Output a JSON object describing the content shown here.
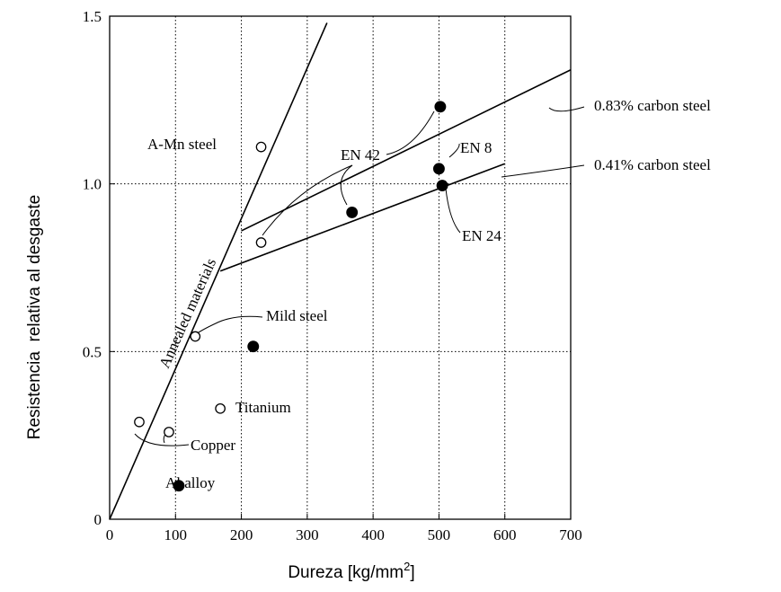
{
  "chart_data": {
    "type": "scatter",
    "title": "",
    "xlabel": "Dureza [kg/mm",
    "xlabel_sup": "2",
    "xlabel_end": "]",
    "ylabel": "Resistencia  relativa al desgaste",
    "xlim": [
      0,
      700
    ],
    "ylim": [
      0,
      1.5
    ],
    "x_ticks": [
      0,
      100,
      200,
      300,
      400,
      500,
      600,
      700
    ],
    "x_tick_labels": [
      "0",
      "100",
      "200",
      "300",
      "400",
      "500",
      "600",
      "700"
    ],
    "y_ticks": [
      0,
      0.5,
      1.0,
      1.5
    ],
    "y_tick_labels": [
      "0",
      "0.5",
      "1.0",
      "1.5"
    ],
    "grid": "dotted",
    "series": [
      {
        "marker": "open-circle",
        "points": [
          {
            "x": 45,
            "y": 0.29
          },
          {
            "x": 90,
            "y": 0.26
          },
          {
            "x": 130,
            "y": 0.545
          },
          {
            "x": 168,
            "y": 0.33
          },
          {
            "x": 230,
            "y": 1.11
          },
          {
            "x": 230,
            "y": 0.825
          }
        ]
      },
      {
        "marker": "filled-circle",
        "points": [
          {
            "x": 105,
            "y": 0.1
          },
          {
            "x": 218,
            "y": 0.515
          },
          {
            "x": 368,
            "y": 0.915
          },
          {
            "x": 500,
            "y": 1.045
          },
          {
            "x": 505,
            "y": 0.995
          },
          {
            "x": 502,
            "y": 1.23
          }
        ]
      }
    ],
    "lines": [
      {
        "name": "annealed",
        "from": [
          0,
          0
        ],
        "to": [
          330,
          1.48
        ]
      },
      {
        "name": "carbon-083",
        "from": [
          200,
          0.86
        ],
        "to": [
          700,
          1.34
        ]
      },
      {
        "name": "carbon-041",
        "from": [
          168,
          0.74
        ],
        "to": [
          600,
          1.06
        ]
      }
    ],
    "annotations": {
      "annealed": "Annealed materials",
      "amn": "A-Mn steel",
      "en42": "EN 42",
      "en8": "EN 8",
      "en24": "EN 24",
      "mild": "Mild steel",
      "titanium": "Titanium",
      "copper": "Copper",
      "alalloy": "Al alloy",
      "carbon083": "0.83% carbon steel",
      "carbon041": "0.41% carbon steel"
    }
  }
}
